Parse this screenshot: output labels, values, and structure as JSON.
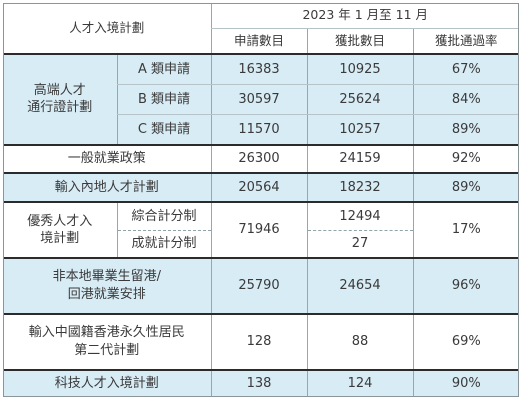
{
  "header": {
    "program": "人才入境計劃",
    "period": "2023 年 1 月至 11 月",
    "applications": "申請數目",
    "approved": "獲批數目",
    "rate": "獲批通過率"
  },
  "rows": {
    "ttps": {
      "name_line1": "高端人才",
      "name_line2": "通行證計劃",
      "a": {
        "sub": "A 類申請",
        "apps": "16383",
        "approved": "10925",
        "rate": "67%"
      },
      "b": {
        "sub": "B 類申請",
        "apps": "30597",
        "approved": "25624",
        "rate": "84%"
      },
      "c": {
        "sub": "C 類申請",
        "apps": "11570",
        "approved": "10257",
        "rate": "89%"
      }
    },
    "gep": {
      "name": "一般就業政策",
      "apps": "26300",
      "approved": "24159",
      "rate": "92%"
    },
    "asmtp": {
      "name": "輸入內地人才計劃",
      "apps": "20564",
      "approved": "18232",
      "rate": "89%"
    },
    "qmas": {
      "name_line1": "優秀人才入",
      "name_line2": "境計劃",
      "sub1": "綜合計分制",
      "sub2": "成就計分制",
      "apps": "71946",
      "approved1": "12494",
      "approved2": "27",
      "rate": "17%"
    },
    "irg": {
      "name_line1": "非本地畢業生留港/",
      "name_line2": "回港就業安排",
      "apps": "25790",
      "approved": "24654",
      "rate": "96%"
    },
    "ics": {
      "name_line1": "輸入中國籍香港永久性居民",
      "name_line2": "第二代計劃",
      "apps": "128",
      "approved": "88",
      "rate": "69%"
    },
    "techtas": {
      "name": "科技人才入境計劃",
      "apps": "138",
      "approved": "124",
      "rate": "90%"
    }
  }
}
